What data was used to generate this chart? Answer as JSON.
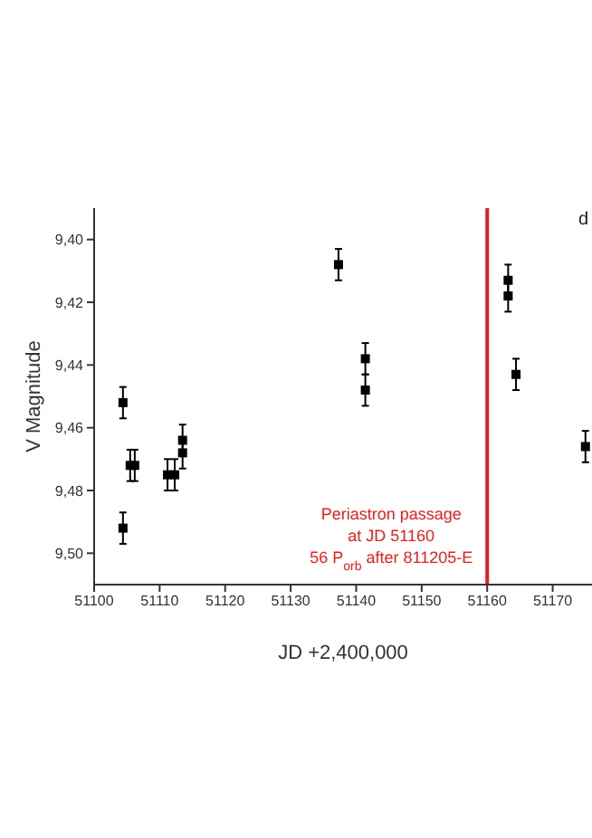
{
  "chart_data": {
    "type": "scatter",
    "xlabel": "JD +2,400,000",
    "ylabel": "V Magnitude",
    "x": [
      51104.4,
      51104.4,
      51105.5,
      51106.2,
      51111.2,
      51112.3,
      51113.5,
      51113.5,
      51137.3,
      51141.4,
      51141.4,
      51163.2,
      51163.2,
      51164.4,
      51175
    ],
    "values": [
      9.452,
      9.492,
      9.472,
      9.472,
      9.475,
      9.475,
      9.464,
      9.468,
      9.408,
      9.438,
      9.448,
      9.413,
      9.418,
      9.443,
      9.466
    ],
    "errors": [
      0.005,
      0.005,
      0.005,
      0.005,
      0.005,
      0.005,
      0.005,
      0.005,
      0.005,
      0.005,
      0.005,
      0.005,
      0.005,
      0.005,
      0.005
    ],
    "color": "#000000",
    "marker": "square",
    "xlim": [
      51100,
      51176
    ],
    "xticks": [
      51100,
      51110,
      51120,
      51130,
      51140,
      51150,
      51160,
      51170
    ],
    "ylim": [
      9.51,
      9.39
    ],
    "yticks": [
      {
        "value": 9.4,
        "label": "9,40"
      },
      {
        "value": 9.42,
        "label": "9,42"
      },
      {
        "value": 9.44,
        "label": "9,44"
      },
      {
        "value": 9.46,
        "label": "9,46"
      },
      {
        "value": 9.48,
        "label": "9,48"
      },
      {
        "value": 9.5,
        "label": "9,50"
      }
    ],
    "grid": false,
    "legend": false,
    "ref_lines": [
      {
        "axis": "x",
        "value": 51160,
        "color": "#e02020",
        "label": "Periastron passage\nat JD 51160\n56 P$_{orb}$ after 811205-E"
      }
    ],
    "annotations": [
      "d"
    ]
  }
}
